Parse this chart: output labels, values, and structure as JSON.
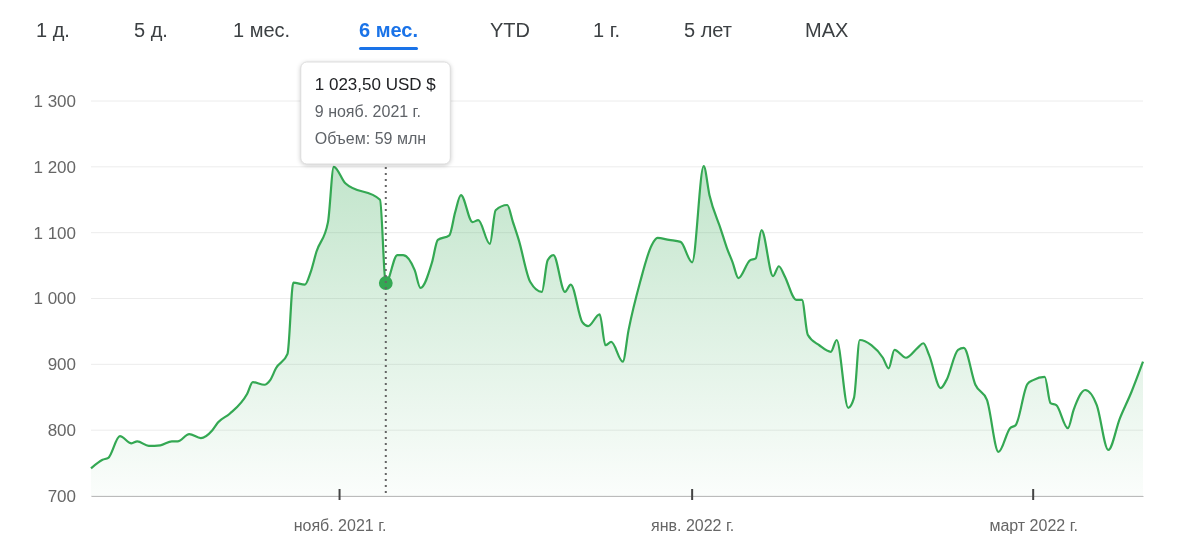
{
  "chart_data": {
    "type": "area",
    "annotations": [
      "1 д.",
      "5 д.",
      "1 мес.",
      "6 мес.",
      "YTD",
      "1 г.",
      "5 лет",
      "MAX",
      "1 023,50 USD $\n9 нояб. 2021 г.\nОбъем: 59 млн"
    ],
    "xlim": [
      "2021-09-19",
      "2022-03-20"
    ],
    "xticks": [
      {
        "value": "2021-11-01",
        "label": "нояб. 2021 г."
      },
      {
        "value": "2022-01-01",
        "label": "янв. 2022 г."
      },
      {
        "value": "2022-03-01",
        "label": "март 2022 г."
      }
    ],
    "ylim": [
      700,
      1300
    ],
    "yticks": [
      700,
      800,
      900,
      {
        "value": 1000,
        "label": "1 000"
      },
      {
        "value": 1100,
        "label": "1 100"
      },
      {
        "value": 1200,
        "label": "1 200"
      },
      {
        "value": 1300,
        "label": "1 300"
      }
    ],
    "grid": "y",
    "ref_lines": [
      {
        "axis": "x",
        "value": "2021-11-09",
        "color": "#666666",
        "line_style": "dotted"
      }
    ],
    "series": [
      {
        "color": "#34a853",
        "x": [
          "2021-09-19",
          "2021-09-21",
          "2021-09-22",
          "2021-09-24",
          "2021-09-26",
          "2021-09-27",
          "2021-09-29",
          "2021-10-01",
          "2021-10-03",
          "2021-10-04",
          "2021-10-06",
          "2021-10-08",
          "2021-10-10",
          "2021-10-11",
          "2021-10-13",
          "2021-10-16",
          "2021-10-17",
          "2021-10-19",
          "2021-10-20",
          "2021-10-21",
          "2021-10-23",
          "2021-10-24",
          "2021-10-26",
          "2021-10-27",
          "2021-10-28",
          "2021-10-30",
          "2021-10-31",
          "2021-11-02",
          "2021-11-08",
          "2021-11-09",
          "2021-11-11",
          "2021-11-12",
          "2021-11-14",
          "2021-11-15",
          "2021-11-17",
          "2021-11-18",
          "2021-11-20",
          "2021-11-21",
          "2021-11-22",
          "2021-11-24",
          "2021-11-25",
          "2021-11-27",
          "2021-11-28",
          "2021-11-30",
          "2021-12-01",
          "2021-12-02",
          "2021-12-04",
          "2021-12-06",
          "2021-12-07",
          "2021-12-08",
          "2021-12-10",
          "2021-12-11",
          "2021-12-13",
          "2021-12-14",
          "2021-12-16",
          "2021-12-17",
          "2021-12-18",
          "2021-12-20",
          "2021-12-21",
          "2021-12-23",
          "2021-12-25",
          "2021-12-26",
          "2021-12-28",
          "2021-12-30",
          "2022-01-01",
          "2022-01-03",
          "2022-01-04",
          "2022-01-06",
          "2022-01-07",
          "2022-01-08",
          "2022-01-09",
          "2022-01-11",
          "2022-01-12",
          "2022-01-13",
          "2022-01-15",
          "2022-01-16",
          "2022-01-17",
          "2022-01-19",
          "2022-01-20",
          "2022-01-21",
          "2022-01-23",
          "2022-01-25",
          "2022-01-26",
          "2022-01-28",
          "2022-01-29",
          "2022-01-30",
          "2022-02-01",
          "2022-02-03",
          "2022-02-04",
          "2022-02-05",
          "2022-02-07",
          "2022-02-09",
          "2022-02-10",
          "2022-02-11",
          "2022-02-13",
          "2022-02-14",
          "2022-02-16",
          "2022-02-17",
          "2022-02-19",
          "2022-02-21",
          "2022-02-23",
          "2022-02-25",
          "2022-02-26",
          "2022-02-28",
          "2022-03-01",
          "2022-03-03",
          "2022-03-04",
          "2022-03-05",
          "2022-03-07",
          "2022-03-08",
          "2022-03-10",
          "2022-03-12",
          "2022-03-14",
          "2022-03-16",
          "2022-03-18",
          "2022-03-20"
        ],
        "values": [
          742,
          755,
          758,
          791,
          780,
          783,
          776,
          777,
          783,
          783,
          794,
          788,
          800,
          812,
          825,
          855,
          873,
          869,
          876,
          894,
          916,
          1024,
          1021,
          1040,
          1071,
          1116,
          1200,
          1175,
          1150,
          1023.5,
          1066,
          1066,
          1043,
          1016,
          1055,
          1089,
          1096,
          1131,
          1157,
          1116,
          1119,
          1083,
          1134,
          1142,
          1116,
          1089,
          1025,
          1010,
          1058,
          1066,
          1010,
          1021,
          964,
          958,
          976,
          929,
          934,
          904,
          952,
          1025,
          1081,
          1092,
          1089,
          1086,
          1055,
          1201,
          1157,
          1104,
          1077,
          1055,
          1031,
          1058,
          1061,
          1104,
          1034,
          1049,
          1034,
          998,
          998,
          945,
          929,
          919,
          937,
          834,
          849,
          937,
          929,
          910,
          894,
          922,
          910,
          925,
          932,
          914,
          864,
          876,
          922,
          925,
          869,
          846,
          767,
          803,
          808,
          870,
          876,
          881,
          841,
          838,
          803,
          831,
          861,
          838,
          770,
          818,
          858,
          904
        ]
      },
      {
        "type": "scatter",
        "color": "#34a853",
        "marker": "circle",
        "x": [
          "2021-11-09"
        ],
        "values": [
          1023.5
        ]
      }
    ]
  }
}
